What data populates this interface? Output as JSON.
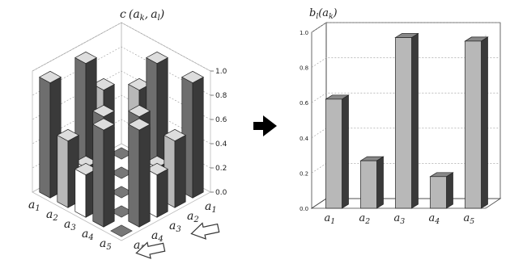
{
  "chart_data": [
    {
      "type": "bar",
      "subtype": "3d-grid",
      "title": "c(a_k, a_l)",
      "title_parts": {
        "prefix": "c",
        "open": "(",
        "a1": "a",
        "sub1": "k",
        "comma": ",",
        "a2": "a",
        "sub2": "l",
        "close": ")"
      },
      "row_labels": [
        {
          "base": "a",
          "sub": "1"
        },
        {
          "base": "a",
          "sub": "2"
        },
        {
          "base": "a",
          "sub": "3"
        },
        {
          "base": "a",
          "sub": "4"
        },
        {
          "base": "a",
          "sub": "5"
        }
      ],
      "col_labels": [
        {
          "base": "a",
          "sub": "1"
        },
        {
          "base": "a",
          "sub": "2"
        },
        {
          "base": "a",
          "sub": "3"
        },
        {
          "base": "a",
          "sub": "4"
        },
        {
          "base": "a",
          "sub": "5"
        }
      ],
      "z_ticks": [
        "0.0",
        "0.2",
        "0.4",
        "0.6",
        "0.8",
        "1.0"
      ],
      "zlim": [
        0,
        1
      ],
      "values": [
        [
          0.0,
          0.65,
          0.95,
          0.15,
          0.95
        ],
        [
          0.65,
          0.0,
          0.45,
          0.25,
          0.55
        ],
        [
          0.95,
          0.45,
          0.0,
          0.75,
          0.35
        ],
        [
          0.15,
          0.25,
          0.75,
          0.0,
          0.8
        ],
        [
          0.95,
          0.55,
          0.35,
          0.8,
          0.0
        ]
      ]
    },
    {
      "type": "bar",
      "subtype": "3d",
      "title": "b_l(a_k)",
      "title_parts": {
        "prefix": "b",
        "sub0": "l",
        "open": "(",
        "a": "a",
        "sub1": "k",
        "close": ")"
      },
      "categories": [
        {
          "base": "a",
          "sub": "1"
        },
        {
          "base": "a",
          "sub": "2"
        },
        {
          "base": "a",
          "sub": "3"
        },
        {
          "base": "a",
          "sub": "4"
        },
        {
          "base": "a",
          "sub": "5"
        }
      ],
      "values": [
        0.62,
        0.27,
        0.97,
        0.18,
        0.95
      ],
      "y_ticks": [
        "0.0",
        "0.2",
        "0.4",
        "0.6",
        "0.8",
        "1.0"
      ],
      "ylim": [
        0,
        1
      ],
      "grid": true
    }
  ],
  "colors": {
    "bar_light": "#ffffff",
    "bar_mid": "#b8b8b8",
    "bar_dark": "#6e6e6e",
    "bar_side": "#3a3a3a",
    "grid": "#999999",
    "axis": "#444444",
    "arrow": "#000000"
  }
}
